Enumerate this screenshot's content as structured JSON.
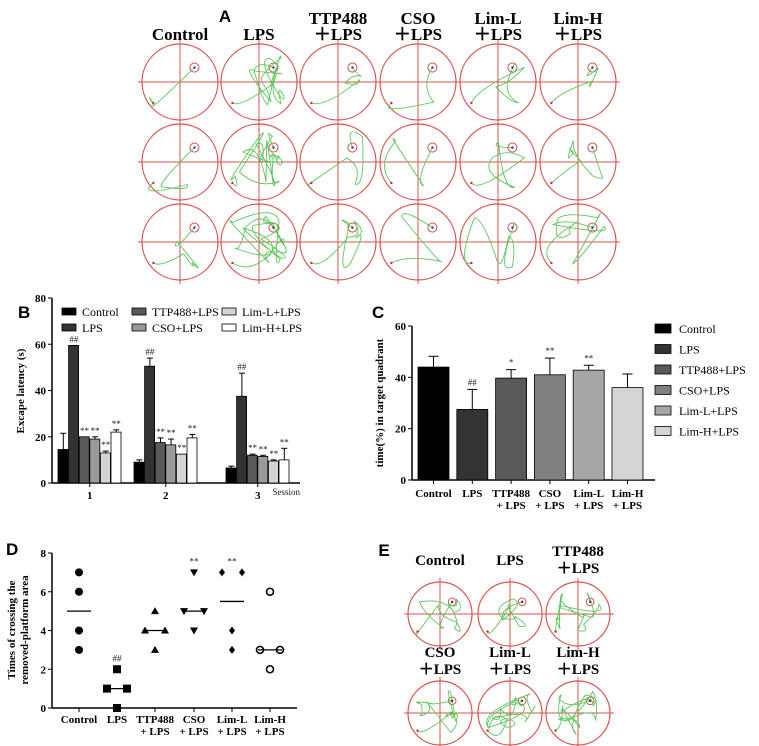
{
  "panel_labels": {
    "a": "A",
    "b": "B",
    "c": "C",
    "d": "D",
    "e": "E"
  },
  "colors": {
    "track": "#5cc85c",
    "pool": "#d9534f"
  },
  "panel_a": {
    "columns": [
      {
        "line1": "Control",
        "line2": ""
      },
      {
        "line1": "LPS",
        "line2": ""
      },
      {
        "line1": "TTP488",
        "line2": "＋LPS"
      },
      {
        "line1": "CSO",
        "line2": "＋LPS"
      },
      {
        "line1": "Lim-L",
        "line2": "＋LPS"
      },
      {
        "line1": "Lim-H",
        "line2": "＋LPS"
      }
    ],
    "rows": 3
  },
  "panel_e": {
    "cells": [
      {
        "line1": "Control",
        "line2": ""
      },
      {
        "line1": "LPS",
        "line2": ""
      },
      {
        "line1": "TTP488",
        "line2": "＋LPS"
      },
      {
        "line1": "CSO",
        "line2": "＋LPS"
      },
      {
        "line1": "Lim-L",
        "line2": "＋LPS"
      },
      {
        "line1": "Lim-H",
        "line2": "＋LPS"
      }
    ]
  },
  "chart_data": [
    {
      "id": "B",
      "type": "bar",
      "ylabel": "Excape latency (s)",
      "xlabel": "Session",
      "ylim": [
        0,
        80
      ],
      "yticks": [
        "0",
        "20",
        "40",
        "60",
        "80"
      ],
      "categories": [
        "1",
        "2",
        "3"
      ],
      "legend_placement": "top",
      "series": [
        {
          "name": "Control",
          "color": "#000000",
          "values": [
            14.5,
            9,
            6.5
          ],
          "errors": [
            7,
            1,
            0.8
          ],
          "annotations": [
            "",
            "",
            ""
          ]
        },
        {
          "name": "LPS",
          "color": "#333333",
          "values": [
            59.5,
            50.5,
            37.5
          ],
          "errors": [
            0,
            3.5,
            10
          ],
          "annotations": [
            "##",
            "##",
            "##"
          ]
        },
        {
          "name": "TTP488+LPS",
          "color": "#5a5a5a",
          "values": [
            20,
            17.5,
            12
          ],
          "errors": [
            0,
            2,
            0.5
          ],
          "annotations": [
            "**",
            "**",
            "**"
          ]
        },
        {
          "name": "CSO+LPS",
          "color": "#9a9a9a",
          "values": [
            19,
            16.5,
            11.5
          ],
          "errors": [
            1,
            2.5,
            0.5
          ],
          "annotations": [
            "**",
            "**",
            "**"
          ]
        },
        {
          "name": "Lim-L+LPS",
          "color": "#d4d4d4",
          "values": [
            13,
            12.5,
            9.5
          ],
          "errors": [
            0.8,
            0,
            0.5
          ],
          "annotations": [
            "**",
            "**",
            "**"
          ]
        },
        {
          "name": "Lim-H+LPS",
          "color": "#ffffff",
          "values": [
            22,
            19.5,
            10
          ],
          "errors": [
            1,
            1.5,
            5
          ],
          "annotations": [
            "**",
            "**",
            "**"
          ]
        }
      ]
    },
    {
      "id": "C",
      "type": "bar",
      "ylabel": "time(%) in target quadrant",
      "ylim": [
        0,
        60
      ],
      "yticks": [
        "0",
        "20",
        "40",
        "60"
      ],
      "categories": [
        {
          "line1": "Control",
          "line2": ""
        },
        {
          "line1": "LPS",
          "line2": ""
        },
        {
          "line1": "TTP488",
          "line2": "+ LPS"
        },
        {
          "line1": "CSO",
          "line2": "+ LPS"
        },
        {
          "line1": "Lim-L",
          "line2": "+ LPS"
        },
        {
          "line1": "Lim-H",
          "line2": "+ LPS"
        }
      ],
      "values": [
        44,
        27.5,
        39.7,
        41,
        42.8,
        36
      ],
      "errors": [
        4.2,
        7.8,
        3.3,
        6.5,
        1.9,
        5.3
      ],
      "annotations": [
        "",
        "##",
        "*",
        "**",
        "**",
        ""
      ],
      "colors": [
        "#000000",
        "#333333",
        "#5a5a5a",
        "#808080",
        "#a6a6a6",
        "#d4d4d4"
      ],
      "legend": [
        "Control",
        "LPS",
        "TTP488+LPS",
        "CSO+LPS",
        "Lim-L+LPS",
        "Lim-H+LPS"
      ],
      "legend_placement": "right"
    },
    {
      "id": "D",
      "type": "scatter",
      "ylabel_line1": "Times of crossing the",
      "ylabel_line2": "removed-platform area",
      "ylim": [
        0,
        8
      ],
      "yticks": [
        "0",
        "2",
        "4",
        "6",
        "8"
      ],
      "categories": [
        {
          "line1": "Control",
          "line2": ""
        },
        {
          "line1": "LPS",
          "line2": ""
        },
        {
          "line1": "TTP488",
          "line2": "+ LPS"
        },
        {
          "line1": "CSO",
          "line2": "+ LPS"
        },
        {
          "line1": "Lim-L",
          "line2": "+ LPS"
        },
        {
          "line1": "Lim-H",
          "line2": "+ LPS"
        }
      ],
      "markers": [
        "circle",
        "square",
        "triangle-up",
        "triangle-down",
        "diamond",
        "circle-open"
      ],
      "points": [
        [
          7,
          6,
          4,
          3
        ],
        [
          2,
          1,
          1,
          0
        ],
        [
          5,
          4,
          4,
          3
        ],
        [
          7,
          5,
          5,
          4
        ],
        [
          7,
          7,
          4,
          3
        ],
        [
          6,
          3,
          3,
          2
        ]
      ],
      "medians": [
        5,
        1,
        4,
        5,
        5.5,
        3
      ],
      "annotations": [
        "",
        "##",
        "",
        "**",
        "**",
        ""
      ]
    }
  ]
}
